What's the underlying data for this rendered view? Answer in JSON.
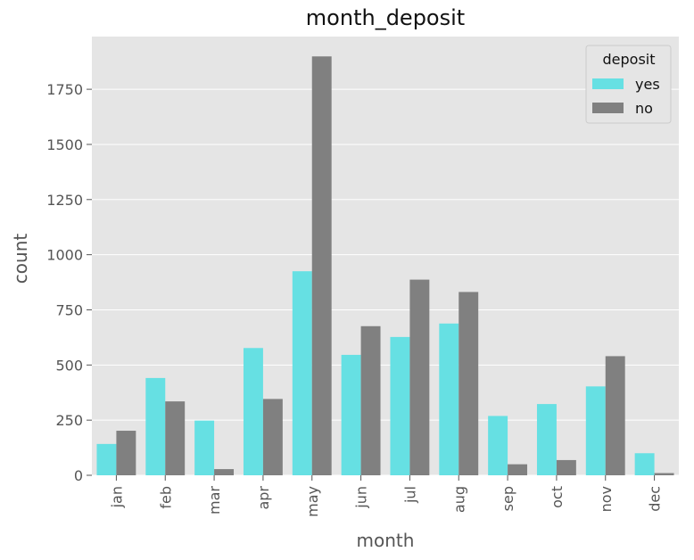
{
  "chart_data": {
    "type": "bar",
    "title": "month_deposit",
    "xlabel": "month",
    "ylabel": "count",
    "categories": [
      "jan",
      "feb",
      "mar",
      "apr",
      "may",
      "jun",
      "jul",
      "aug",
      "sep",
      "oct",
      "nov",
      "dec"
    ],
    "series": [
      {
        "name": "yes",
        "color": "#66e0e3",
        "values": [
          142,
          441,
          248,
          577,
          925,
          546,
          627,
          688,
          269,
          323,
          403,
          100
        ]
      },
      {
        "name": "no",
        "color": "#808080",
        "values": [
          202,
          335,
          28,
          346,
          1899,
          676,
          887,
          831,
          50,
          69,
          540,
          10
        ]
      }
    ],
    "ylim": [
      0,
      1900
    ],
    "yticks": [
      0,
      250,
      500,
      750,
      1000,
      1250,
      1500,
      1750
    ],
    "ytick_labels": [
      "0",
      "250",
      "500",
      "750",
      "1000",
      "1250",
      "1500",
      "1750"
    ],
    "grid": true,
    "background": "#e5e5e5",
    "legend": {
      "title": "deposit",
      "position": "top-right"
    }
  }
}
